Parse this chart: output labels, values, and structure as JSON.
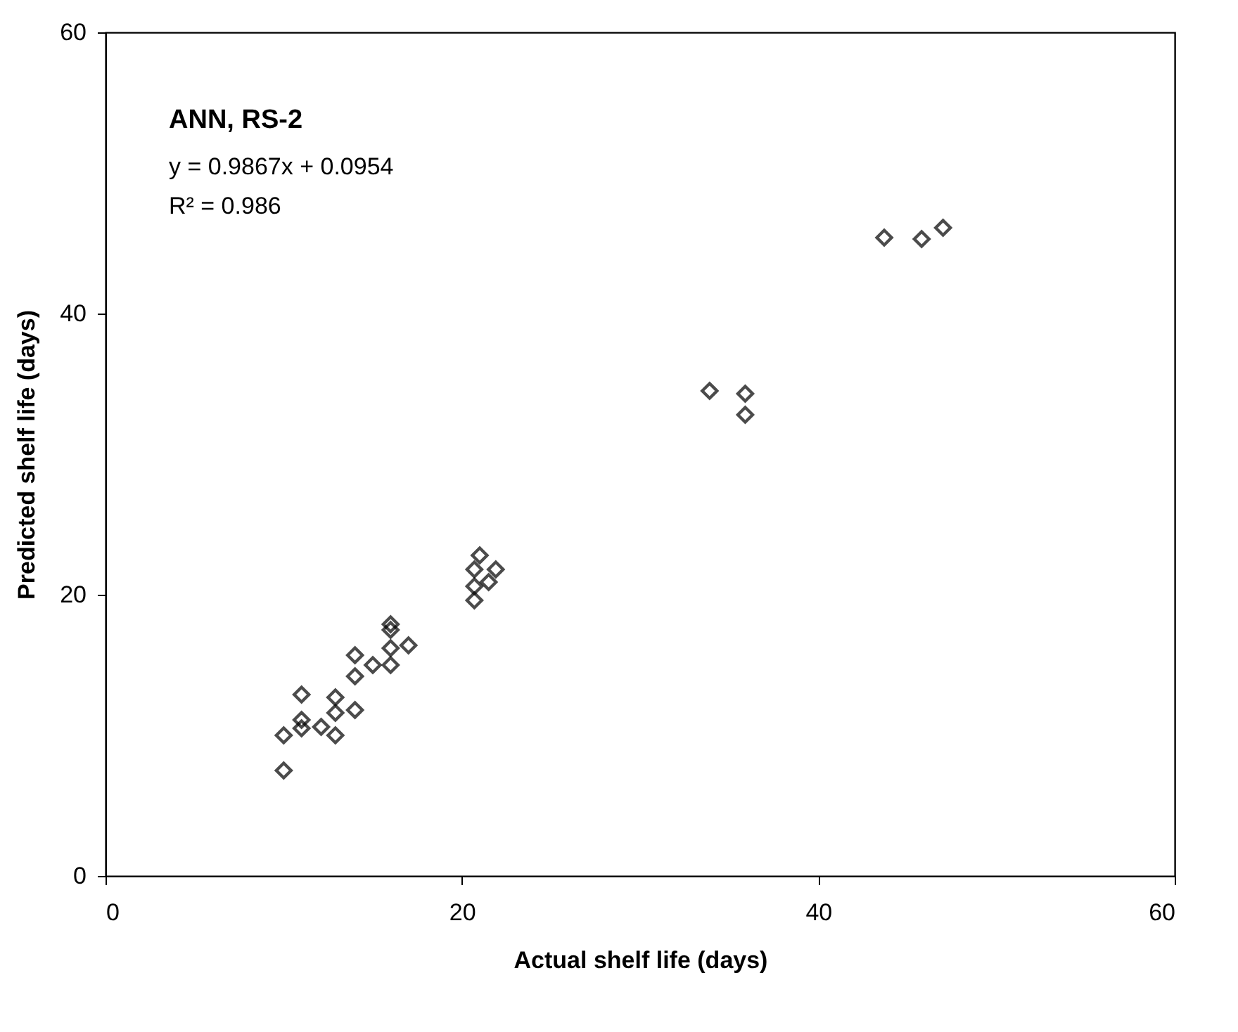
{
  "chart_data": {
    "type": "scatter",
    "xlabel": "Actual shelf life (days)",
    "ylabel": "Predicted shelf life (days)",
    "annotations": [
      "ANN, RS-2",
      "y = 0.9867x + 0.0954",
      "R² = 0.986"
    ],
    "x": [
      10.0,
      10.0,
      11.0,
      11.0,
      11.0,
      12.1,
      12.9,
      12.9,
      12.9,
      14.0,
      14.0,
      14.0,
      15.0,
      16.0,
      16.0,
      16.0,
      16.0,
      17.0,
      20.7,
      20.7,
      20.7,
      21.0,
      21.5,
      21.9,
      33.9,
      35.9,
      35.9,
      43.7,
      45.8,
      47.0
    ],
    "values": [
      7.5,
      10.0,
      12.9,
      11.1,
      10.5,
      10.6,
      12.7,
      11.6,
      10.0,
      11.8,
      15.7,
      14.2,
      15.0,
      17.9,
      17.5,
      16.2,
      15.0,
      16.4,
      21.8,
      20.6,
      19.6,
      22.8,
      20.9,
      21.8,
      34.5,
      34.3,
      32.8,
      45.4,
      45.3,
      46.1
    ],
    "color": "#000000",
    "marker": "diamond",
    "xlim": [
      0,
      60
    ],
    "ylim": [
      0,
      60
    ],
    "xticks": [
      0,
      20,
      40,
      60
    ],
    "yticks": [
      0,
      20,
      40,
      60
    ],
    "grid": false
  }
}
